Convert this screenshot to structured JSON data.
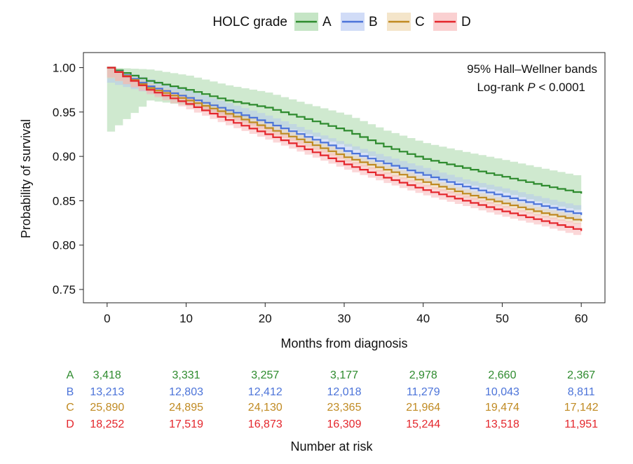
{
  "chart_data": {
    "type": "line",
    "subtype": "kaplan-meier step survival curves with confidence bands",
    "xlabel": "Months from diagnosis",
    "ylabel": "Probability of survival",
    "xlim": [
      -3,
      63
    ],
    "ylim": [
      0.735,
      1.017
    ],
    "xticks": [
      0,
      10,
      20,
      30,
      40,
      50,
      60
    ],
    "yticks": [
      0.75,
      0.8,
      0.85,
      0.9,
      0.95,
      1.0
    ],
    "ytick_labels": [
      "0.75",
      "0.80",
      "0.85",
      "0.90",
      "0.95",
      "1.00"
    ],
    "legend": {
      "title": "HOLC grade",
      "position": "top"
    },
    "annotations": {
      "line1": "95% Hall–Wellner bands",
      "line2_prefix": "Log-rank ",
      "line2_italic": "P",
      "line2_suffix": " < 0.0001"
    },
    "x": [
      0,
      5,
      10,
      15,
      20,
      25,
      30,
      35,
      40,
      45,
      50,
      55,
      60
    ],
    "series": [
      {
        "name": "A",
        "color": "#2e8b2e",
        "band_color": "#9fd49f",
        "values": [
          1.0,
          0.985,
          0.975,
          0.963,
          0.955,
          0.942,
          0.929,
          0.911,
          0.897,
          0.887,
          0.877,
          0.867,
          0.858
        ],
        "band_lower": [
          0.928,
          0.963,
          0.957,
          0.946,
          0.938,
          0.925,
          0.911,
          0.893,
          0.879,
          0.869,
          0.859,
          0.847,
          0.838
        ],
        "band_upper": [
          1.0,
          0.998,
          0.991,
          0.98,
          0.972,
          0.959,
          0.947,
          0.929,
          0.915,
          0.905,
          0.896,
          0.886,
          0.877
        ]
      },
      {
        "name": "B",
        "color": "#4c74d9",
        "band_color": "#b3c5f2",
        "values": [
          1.0,
          0.979,
          0.966,
          0.952,
          0.938,
          0.922,
          0.906,
          0.892,
          0.879,
          0.866,
          0.855,
          0.844,
          0.834
        ],
        "band_lower": [
          0.983,
          0.971,
          0.958,
          0.944,
          0.93,
          0.914,
          0.898,
          0.884,
          0.871,
          0.858,
          0.846,
          0.835,
          0.825
        ],
        "band_upper": [
          1.0,
          0.987,
          0.974,
          0.96,
          0.946,
          0.93,
          0.914,
          0.9,
          0.887,
          0.874,
          0.864,
          0.853,
          0.843
        ]
      },
      {
        "name": "C",
        "color": "#c08a22",
        "band_color": "#ecd3a6",
        "values": [
          1.0,
          0.977,
          0.963,
          0.948,
          0.932,
          0.916,
          0.899,
          0.885,
          0.871,
          0.858,
          0.847,
          0.836,
          0.827
        ],
        "band_lower": [
          0.988,
          0.972,
          0.958,
          0.943,
          0.927,
          0.911,
          0.894,
          0.88,
          0.866,
          0.853,
          0.842,
          0.831,
          0.822
        ],
        "band_upper": [
          1.0,
          0.982,
          0.968,
          0.953,
          0.937,
          0.921,
          0.904,
          0.89,
          0.876,
          0.863,
          0.852,
          0.841,
          0.832
        ]
      },
      {
        "name": "D",
        "color": "#e4262c",
        "band_color": "#f7b0b2",
        "values": [
          1.0,
          0.975,
          0.959,
          0.941,
          0.925,
          0.908,
          0.891,
          0.876,
          0.862,
          0.85,
          0.838,
          0.827,
          0.816
        ],
        "band_lower": [
          0.989,
          0.97,
          0.953,
          0.935,
          0.919,
          0.902,
          0.885,
          0.87,
          0.856,
          0.844,
          0.832,
          0.821,
          0.809
        ],
        "band_upper": [
          1.0,
          0.98,
          0.965,
          0.947,
          0.931,
          0.914,
          0.897,
          0.882,
          0.868,
          0.856,
          0.844,
          0.833,
          0.823
        ]
      }
    ],
    "risk_table": {
      "title": "Number at risk",
      "times": [
        0,
        10,
        20,
        30,
        40,
        50,
        60
      ],
      "rows": [
        {
          "group": "A",
          "color": "#2e8b2e",
          "values": [
            "3,418",
            "3,331",
            "3,257",
            "3,177",
            "2,978",
            "2,660",
            "2,367"
          ]
        },
        {
          "group": "B",
          "color": "#4c74d9",
          "values": [
            "13,213",
            "12,803",
            "12,412",
            "12,018",
            "11,279",
            "10,043",
            "8,811"
          ]
        },
        {
          "group": "C",
          "color": "#c08a22",
          "values": [
            "25,890",
            "24,895",
            "24,130",
            "23,365",
            "21,964",
            "19,474",
            "17,142"
          ]
        },
        {
          "group": "D",
          "color": "#e4262c",
          "values": [
            "18,252",
            "17,519",
            "16,873",
            "16,309",
            "15,244",
            "13,518",
            "11,951"
          ]
        }
      ]
    }
  }
}
